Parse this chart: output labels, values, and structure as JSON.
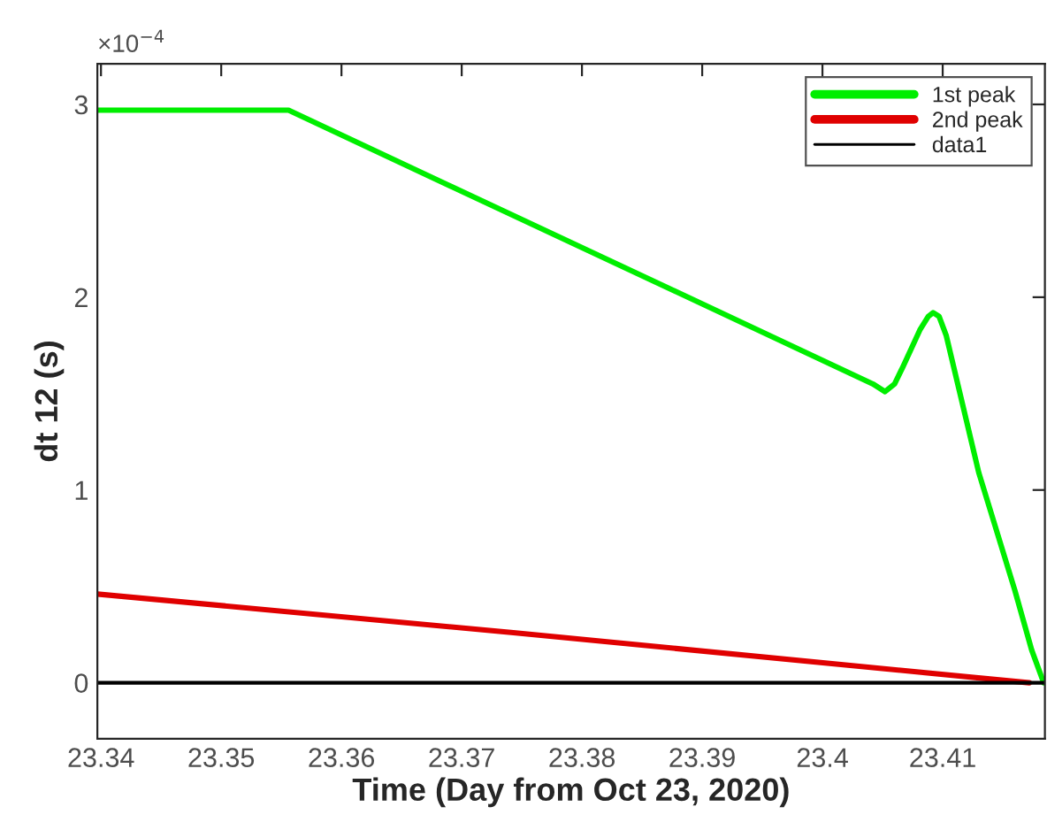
{
  "chart_data": {
    "type": "line",
    "xlabel": "Time (Day from Oct 23, 2020)",
    "ylabel": "dt 12 (s)",
    "annotations": [
      "×10$^{−4}$"
    ],
    "series": [
      {
        "name": "1st peak",
        "color": "#00ee00",
        "x": [
          23.3397,
          23.3556,
          23.4042,
          23.4052,
          23.406,
          23.4067,
          23.4081,
          23.4088,
          23.4092,
          23.4097,
          23.4103,
          23.413,
          23.416,
          23.4174,
          23.4184
        ],
        "values": [
          2.97,
          2.97,
          1.55,
          1.51,
          1.55,
          1.64,
          1.83,
          1.9,
          1.92,
          1.9,
          1.8,
          1.09,
          0.48,
          0.17,
          0.0
        ]
      },
      {
        "name": "2nd peak",
        "color": "#e00000",
        "x": [
          23.3397,
          23.3743,
          23.4172
        ],
        "values": [
          0.46,
          0.26,
          0.0
        ]
      },
      {
        "name": "data1",
        "color": "#000000",
        "x": [
          23.3397,
          23.4185
        ],
        "values": [
          0.0,
          0.0
        ]
      }
    ],
    "xlim": [
      23.3397,
      23.4185
    ],
    "xticks": [
      23.34,
      23.35,
      23.36,
      23.37,
      23.38,
      23.39,
      23.4,
      23.41
    ],
    "ylim": [
      -0.29,
      3.21
    ],
    "yticks": [
      0,
      1,
      2,
      3
    ],
    "legend": "top right",
    "grid": false
  }
}
